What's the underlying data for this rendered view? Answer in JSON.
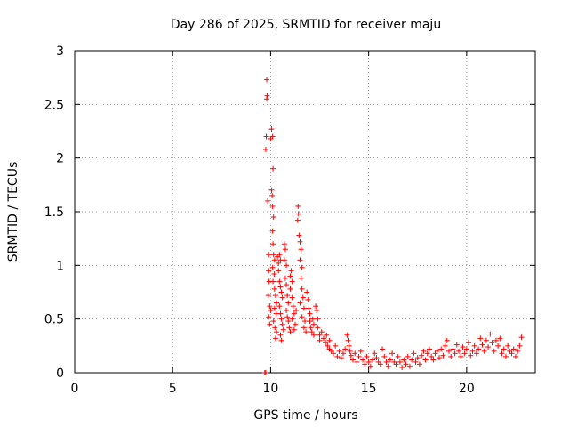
{
  "chart_data": {
    "type": "scatter",
    "title": "Day 286 of 2025, SRMTID for receiver maju",
    "xlabel": "GPS time / hours",
    "ylabel": "SRMTID / TECUs",
    "xlim": [
      0,
      23.5
    ],
    "ylim": [
      0,
      3
    ],
    "xticks": [
      0,
      5,
      10,
      15,
      20
    ],
    "xtick_labels": [
      "0",
      "5",
      "10",
      "15",
      "20"
    ],
    "yticks": [
      0,
      0.5,
      1,
      1.5,
      2,
      2.5,
      3
    ],
    "ytick_labels": [
      "0",
      "0.5",
      "1",
      "1.5",
      "2",
      "2.5",
      "3"
    ],
    "grid": true,
    "marker": "+",
    "series": [
      {
        "name": "SRMTID",
        "color": "#ff0000",
        "points": [
          [
            9.7,
            0.0
          ],
          [
            9.75,
            0.0
          ],
          [
            9.8,
            2.73
          ],
          [
            9.8,
            2.55
          ],
          [
            9.82,
            2.58
          ],
          [
            9.78,
            2.2
          ],
          [
            9.75,
            2.08
          ],
          [
            9.85,
            1.6
          ],
          [
            9.9,
            1.1
          ],
          [
            9.9,
            0.95
          ],
          [
            9.92,
            0.85
          ],
          [
            9.88,
            0.72
          ],
          [
            9.95,
            0.62
          ],
          [
            9.9,
            0.52
          ],
          [
            9.95,
            0.45
          ],
          [
            10.0,
            0.58
          ],
          [
            10.05,
            2.27
          ],
          [
            10.1,
            2.2
          ],
          [
            10.0,
            2.18
          ],
          [
            10.12,
            1.9
          ],
          [
            10.05,
            1.7
          ],
          [
            10.08,
            1.65
          ],
          [
            10.1,
            1.55
          ],
          [
            10.15,
            1.45
          ],
          [
            10.1,
            1.32
          ],
          [
            10.12,
            1.2
          ],
          [
            10.15,
            1.1
          ],
          [
            10.2,
            1.05
          ],
          [
            10.1,
            0.98
          ],
          [
            10.18,
            0.92
          ],
          [
            10.12,
            0.85
          ],
          [
            10.2,
            0.78
          ],
          [
            10.25,
            0.72
          ],
          [
            10.3,
            0.65
          ],
          [
            10.2,
            0.6
          ],
          [
            10.28,
            0.55
          ],
          [
            10.15,
            0.48
          ],
          [
            10.22,
            0.42
          ],
          [
            10.3,
            0.38
          ],
          [
            10.25,
            0.32
          ],
          [
            10.35,
            1.08
          ],
          [
            10.4,
            1.02
          ],
          [
            10.45,
            1.1
          ],
          [
            10.5,
            1.05
          ],
          [
            10.4,
            0.95
          ],
          [
            10.45,
            0.85
          ],
          [
            10.5,
            0.8
          ],
          [
            10.55,
            0.75
          ],
          [
            10.6,
            0.7
          ],
          [
            10.45,
            0.62
          ],
          [
            10.5,
            0.55
          ],
          [
            10.55,
            0.5
          ],
          [
            10.6,
            0.45
          ],
          [
            10.65,
            0.4
          ],
          [
            10.5,
            0.35
          ],
          [
            10.55,
            0.3
          ],
          [
            10.7,
            1.2
          ],
          [
            10.75,
            1.15
          ],
          [
            10.7,
            1.05
          ],
          [
            10.8,
            1.0
          ],
          [
            10.75,
            0.88
          ],
          [
            10.8,
            0.82
          ],
          [
            10.85,
            0.72
          ],
          [
            10.9,
            0.65
          ],
          [
            10.8,
            0.58
          ],
          [
            10.85,
            0.52
          ],
          [
            10.9,
            0.48
          ],
          [
            10.95,
            0.42
          ],
          [
            11.0,
            0.38
          ],
          [
            11.0,
            0.9
          ],
          [
            11.05,
            0.95
          ],
          [
            11.1,
            0.85
          ],
          [
            11.0,
            0.78
          ],
          [
            11.1,
            0.7
          ],
          [
            11.15,
            0.62
          ],
          [
            11.2,
            0.55
          ],
          [
            11.1,
            0.5
          ],
          [
            11.25,
            0.45
          ],
          [
            11.2,
            0.4
          ],
          [
            11.3,
            0.58
          ],
          [
            11.4,
            1.55
          ],
          [
            11.42,
            1.48
          ],
          [
            11.38,
            1.42
          ],
          [
            11.45,
            1.28
          ],
          [
            11.5,
            1.22
          ],
          [
            11.55,
            1.15
          ],
          [
            11.5,
            1.05
          ],
          [
            11.6,
            0.98
          ],
          [
            11.55,
            0.88
          ],
          [
            11.6,
            0.78
          ],
          [
            11.65,
            0.7
          ],
          [
            11.5,
            0.65
          ],
          [
            11.7,
            0.6
          ],
          [
            11.6,
            0.52
          ],
          [
            11.75,
            0.48
          ],
          [
            11.7,
            0.42
          ],
          [
            11.8,
            0.38
          ],
          [
            11.85,
            0.75
          ],
          [
            11.9,
            0.68
          ],
          [
            11.95,
            0.6
          ],
          [
            12.0,
            0.55
          ],
          [
            12.0,
            0.48
          ],
          [
            12.05,
            0.42
          ],
          [
            12.1,
            0.38
          ],
          [
            12.15,
            0.5
          ],
          [
            12.2,
            0.45
          ],
          [
            12.2,
            0.35
          ],
          [
            12.3,
            0.62
          ],
          [
            12.35,
            0.58
          ],
          [
            12.4,
            0.5
          ],
          [
            12.4,
            0.42
          ],
          [
            12.5,
            0.35
          ],
          [
            12.5,
            0.3
          ],
          [
            12.6,
            0.38
          ],
          [
            12.7,
            0.32
          ],
          [
            12.8,
            0.28
          ],
          [
            12.85,
            0.35
          ],
          [
            12.9,
            0.25
          ],
          [
            13.0,
            0.3
          ],
          [
            13.0,
            0.22
          ],
          [
            13.1,
            0.2
          ],
          [
            13.2,
            0.18
          ],
          [
            13.3,
            0.25
          ],
          [
            13.4,
            0.15
          ],
          [
            13.5,
            0.2
          ],
          [
            13.6,
            0.14
          ],
          [
            13.7,
            0.18
          ],
          [
            13.8,
            0.22
          ],
          [
            13.9,
            0.35
          ],
          [
            13.95,
            0.3
          ],
          [
            14.0,
            0.25
          ],
          [
            14.05,
            0.2
          ],
          [
            14.1,
            0.16
          ],
          [
            14.2,
            0.12
          ],
          [
            14.3,
            0.18
          ],
          [
            14.4,
            0.1
          ],
          [
            14.5,
            0.15
          ],
          [
            14.6,
            0.2
          ],
          [
            14.7,
            0.12
          ],
          [
            14.8,
            0.08
          ],
          [
            14.9,
            0.15
          ],
          [
            15.0,
            0.1
          ],
          [
            15.1,
            0.06
          ],
          [
            15.2,
            0.12
          ],
          [
            15.3,
            0.18
          ],
          [
            15.4,
            0.14
          ],
          [
            15.5,
            0.1
          ],
          [
            15.6,
            0.08
          ],
          [
            15.7,
            0.22
          ],
          [
            15.8,
            0.15
          ],
          [
            15.9,
            0.1
          ],
          [
            16.0,
            0.06
          ],
          [
            16.1,
            0.12
          ],
          [
            16.2,
            0.18
          ],
          [
            16.3,
            0.1
          ],
          [
            16.4,
            0.08
          ],
          [
            16.5,
            0.15
          ],
          [
            16.6,
            0.1
          ],
          [
            16.7,
            0.05
          ],
          [
            16.8,
            0.12
          ],
          [
            16.9,
            0.08
          ],
          [
            17.0,
            0.15
          ],
          [
            17.1,
            0.06
          ],
          [
            17.2,
            0.12
          ],
          [
            17.3,
            0.18
          ],
          [
            17.4,
            0.1
          ],
          [
            17.5,
            0.14
          ],
          [
            17.6,
            0.08
          ],
          [
            17.7,
            0.16
          ],
          [
            17.8,
            0.2
          ],
          [
            17.9,
            0.12
          ],
          [
            18.0,
            0.18
          ],
          [
            18.1,
            0.22
          ],
          [
            18.2,
            0.15
          ],
          [
            18.3,
            0.12
          ],
          [
            18.4,
            0.18
          ],
          [
            18.5,
            0.2
          ],
          [
            18.6,
            0.14
          ],
          [
            18.7,
            0.22
          ],
          [
            18.8,
            0.16
          ],
          [
            18.9,
            0.25
          ],
          [
            19.0,
            0.3
          ],
          [
            19.1,
            0.2
          ],
          [
            19.2,
            0.15
          ],
          [
            19.3,
            0.22
          ],
          [
            19.4,
            0.18
          ],
          [
            19.5,
            0.26
          ],
          [
            19.6,
            0.2
          ],
          [
            19.7,
            0.15
          ],
          [
            19.8,
            0.24
          ],
          [
            19.9,
            0.18
          ],
          [
            20.0,
            0.22
          ],
          [
            20.1,
            0.28
          ],
          [
            20.2,
            0.16
          ],
          [
            20.3,
            0.2
          ],
          [
            20.4,
            0.25
          ],
          [
            20.5,
            0.18
          ],
          [
            20.6,
            0.22
          ],
          [
            20.7,
            0.32
          ],
          [
            20.8,
            0.26
          ],
          [
            20.9,
            0.2
          ],
          [
            21.0,
            0.3
          ],
          [
            21.1,
            0.24
          ],
          [
            21.2,
            0.36
          ],
          [
            21.3,
            0.28
          ],
          [
            21.4,
            0.2
          ],
          [
            21.5,
            0.3
          ],
          [
            21.6,
            0.25
          ],
          [
            21.7,
            0.32
          ],
          [
            21.8,
            0.18
          ],
          [
            21.9,
            0.22
          ],
          [
            22.0,
            0.15
          ],
          [
            22.1,
            0.25
          ],
          [
            22.2,
            0.2
          ],
          [
            22.3,
            0.18
          ],
          [
            22.4,
            0.22
          ],
          [
            22.5,
            0.15
          ],
          [
            22.6,
            0.2
          ],
          [
            22.7,
            0.25
          ],
          [
            22.8,
            0.33
          ]
        ]
      }
    ]
  }
}
